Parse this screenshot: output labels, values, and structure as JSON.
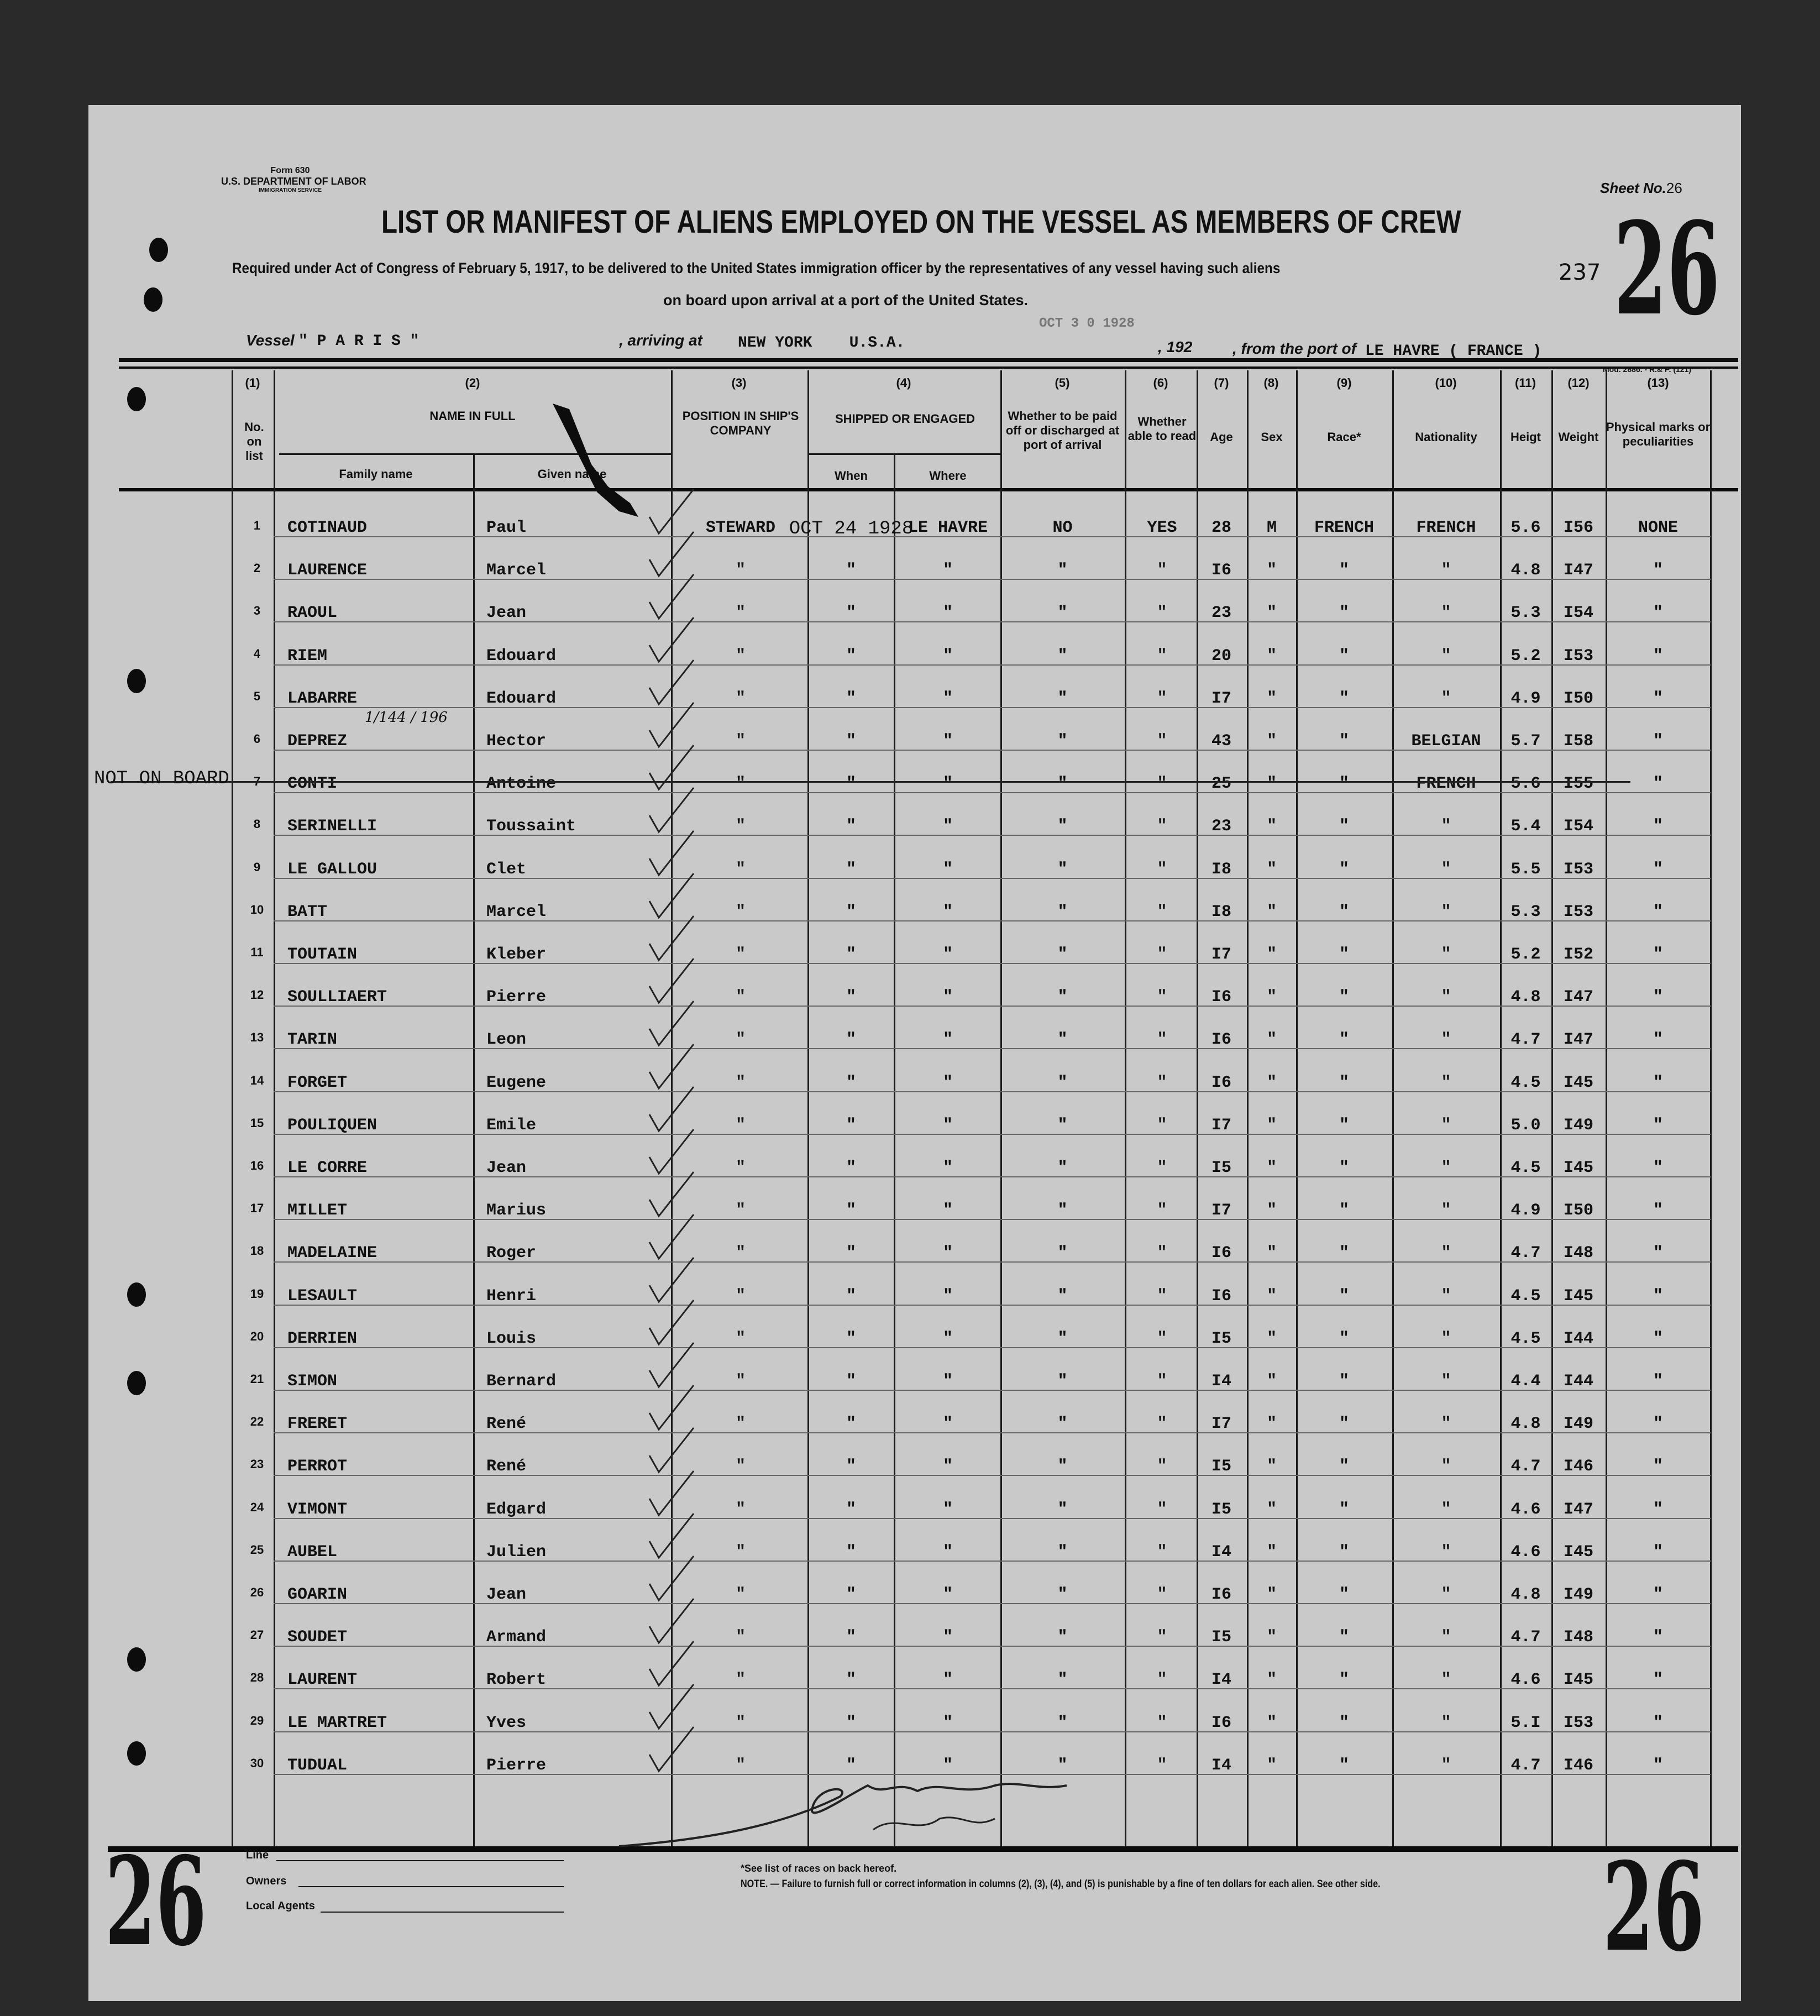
{
  "form": {
    "form_no": "Form 630",
    "department": "U.S. DEPARTMENT OF LABOR",
    "service": "IMMIGRATION SERVICE",
    "mod": "Mod. 2886. - R.& P. (121)"
  },
  "sheet": {
    "label": "Sheet No.",
    "number": "26",
    "stamp_number": "26",
    "handwritten": "237"
  },
  "title": "LIST OR MANIFEST OF ALIENS EMPLOYED ON THE VESSEL AS MEMBERS OF CREW",
  "subtitle_line1": "Required under Act of Congress of February 5, 1917, to be delivered to the United States immigration officer by the representatives of any vessel having such aliens",
  "subtitle_line2": "on board upon arrival at a port of the United States.",
  "voyage": {
    "vessel_label": "Vessel",
    "vessel": "\" P A R I S \"",
    "arriving_label": ", arriving at",
    "arriving": "NEW YORK    U.S.A.",
    "date_stamp": "OCT 3 0 1928",
    "year_label": ", 192",
    "from_label": ", from the port of",
    "from_port": "LE HAVRE ( FRANCE )"
  },
  "columns": {
    "nums": [
      "(1)",
      "(2)",
      "(3)",
      "(4)",
      "(5)",
      "(6)",
      "(7)",
      "(8)",
      "(9)",
      "(10)",
      "(11)",
      "(12)",
      "(13)"
    ],
    "no_on_list": "No. on list",
    "name_in_full": "NAME IN FULL",
    "family_name": "Family name",
    "given_name": "Given name",
    "position": "POSITION IN SHIP'S COMPANY",
    "shipped": "SHIPPED OR ENGAGED",
    "when": "When",
    "where": "Where",
    "paid_off": "Whether to be paid off or discharged at port of arrival",
    "able_to_read": "Whether able to read",
    "age": "Age",
    "sex": "Sex",
    "race": "Race*",
    "nationality": "Nationality",
    "height": "Heigt",
    "weight": "Weight",
    "marks": "Physical marks or peculiarities"
  },
  "annotations": {
    "not_on_board": "NOT ON BOARD",
    "deprez_note": "1/144 / 196"
  },
  "rows": [
    [
      "1",
      "COTINAUD",
      "Paul",
      "STEWARD",
      "OCT 24 1928",
      "LE HAVRE",
      "NO",
      "YES",
      "28",
      "M",
      "FRENCH",
      "FRENCH",
      "5.6",
      "I56",
      "NONE"
    ],
    [
      "2",
      "LAURENCE",
      "Marcel",
      "\"",
      "\"",
      "\"",
      "\"",
      "\"",
      "I6",
      "\"",
      "\"",
      "\"",
      "4.8",
      "I47",
      "\""
    ],
    [
      "3",
      "RAOUL",
      "Jean",
      "\"",
      "\"",
      "\"",
      "\"",
      "\"",
      "23",
      "\"",
      "\"",
      "\"",
      "5.3",
      "I54",
      "\""
    ],
    [
      "4",
      "RIEM",
      "Edouard",
      "\"",
      "\"",
      "\"",
      "\"",
      "\"",
      "20",
      "\"",
      "\"",
      "\"",
      "5.2",
      "I53",
      "\""
    ],
    [
      "5",
      "LABARRE",
      "Edouard",
      "\"",
      "\"",
      "\"",
      "\"",
      "\"",
      "I7",
      "\"",
      "\"",
      "\"",
      "4.9",
      "I50",
      "\""
    ],
    [
      "6",
      "DEPREZ",
      "Hector",
      "\"",
      "\"",
      "\"",
      "\"",
      "\"",
      "43",
      "\"",
      "\"",
      "BELGIAN",
      "5.7",
      "I58",
      "\""
    ],
    [
      "7",
      "CONTI",
      "Antoine",
      "\"",
      "\"",
      "\"",
      "\"",
      "\"",
      "25",
      "\"",
      "\"",
      "FRENCH",
      "5.6",
      "I55",
      "\""
    ],
    [
      "8",
      "SERINELLI",
      "Toussaint",
      "\"",
      "\"",
      "\"",
      "\"",
      "\"",
      "23",
      "\"",
      "\"",
      "\"",
      "5.4",
      "I54",
      "\""
    ],
    [
      "9",
      "LE GALLOU",
      "Clet",
      "\"",
      "\"",
      "\"",
      "\"",
      "\"",
      "I8",
      "\"",
      "\"",
      "\"",
      "5.5",
      "I53",
      "\""
    ],
    [
      "10",
      "BATT",
      "Marcel",
      "\"",
      "\"",
      "\"",
      "\"",
      "\"",
      "I8",
      "\"",
      "\"",
      "\"",
      "5.3",
      "I53",
      "\""
    ],
    [
      "11",
      "TOUTAIN",
      "Kleber",
      "\"",
      "\"",
      "\"",
      "\"",
      "\"",
      "I7",
      "\"",
      "\"",
      "\"",
      "5.2",
      "I52",
      "\""
    ],
    [
      "12",
      "SOULLIAERT",
      "Pierre",
      "\"",
      "\"",
      "\"",
      "\"",
      "\"",
      "I6",
      "\"",
      "\"",
      "\"",
      "4.8",
      "I47",
      "\""
    ],
    [
      "13",
      "TARIN",
      "Leon",
      "\"",
      "\"",
      "\"",
      "\"",
      "\"",
      "I6",
      "\"",
      "\"",
      "\"",
      "4.7",
      "I47",
      "\""
    ],
    [
      "14",
      "FORGET",
      "Eugene",
      "\"",
      "\"",
      "\"",
      "\"",
      "\"",
      "I6",
      "\"",
      "\"",
      "\"",
      "4.5",
      "I45",
      "\""
    ],
    [
      "15",
      "POULIQUEN",
      "Emile",
      "\"",
      "\"",
      "\"",
      "\"",
      "\"",
      "I7",
      "\"",
      "\"",
      "\"",
      "5.0",
      "I49",
      "\""
    ],
    [
      "16",
      "LE CORRE",
      "Jean",
      "\"",
      "\"",
      "\"",
      "\"",
      "\"",
      "I5",
      "\"",
      "\"",
      "\"",
      "4.5",
      "I45",
      "\""
    ],
    [
      "17",
      "MILLET",
      "Marius",
      "\"",
      "\"",
      "\"",
      "\"",
      "\"",
      "I7",
      "\"",
      "\"",
      "\"",
      "4.9",
      "I50",
      "\""
    ],
    [
      "18",
      "MADELAINE",
      "Roger",
      "\"",
      "\"",
      "\"",
      "\"",
      "\"",
      "I6",
      "\"",
      "\"",
      "\"",
      "4.7",
      "I48",
      "\""
    ],
    [
      "19",
      "LESAULT",
      "Henri",
      "\"",
      "\"",
      "\"",
      "\"",
      "\"",
      "I6",
      "\"",
      "\"",
      "\"",
      "4.5",
      "I45",
      "\""
    ],
    [
      "20",
      "DERRIEN",
      "Louis",
      "\"",
      "\"",
      "\"",
      "\"",
      "\"",
      "I5",
      "\"",
      "\"",
      "\"",
      "4.5",
      "I44",
      "\""
    ],
    [
      "21",
      "SIMON",
      "Bernard",
      "\"",
      "\"",
      "\"",
      "\"",
      "\"",
      "I4",
      "\"",
      "\"",
      "\"",
      "4.4",
      "I44",
      "\""
    ],
    [
      "22",
      "FRERET",
      "René",
      "\"",
      "\"",
      "\"",
      "\"",
      "\"",
      "I7",
      "\"",
      "\"",
      "\"",
      "4.8",
      "I49",
      "\""
    ],
    [
      "23",
      "PERROT",
      "René",
      "\"",
      "\"",
      "\"",
      "\"",
      "\"",
      "I5",
      "\"",
      "\"",
      "\"",
      "4.7",
      "I46",
      "\""
    ],
    [
      "24",
      "VIMONT",
      "Edgard",
      "\"",
      "\"",
      "\"",
      "\"",
      "\"",
      "I5",
      "\"",
      "\"",
      "\"",
      "4.6",
      "I47",
      "\""
    ],
    [
      "25",
      "AUBEL",
      "Julien",
      "\"",
      "\"",
      "\"",
      "\"",
      "\"",
      "I4",
      "\"",
      "\"",
      "\"",
      "4.6",
      "I45",
      "\""
    ],
    [
      "26",
      "GOARIN",
      "Jean",
      "\"",
      "\"",
      "\"",
      "\"",
      "\"",
      "I6",
      "\"",
      "\"",
      "\"",
      "4.8",
      "I49",
      "\""
    ],
    [
      "27",
      "SOUDET",
      "Armand",
      "\"",
      "\"",
      "\"",
      "\"",
      "\"",
      "I5",
      "\"",
      "\"",
      "\"",
      "4.7",
      "I48",
      "\""
    ],
    [
      "28",
      "LAURENT",
      "Robert",
      "\"",
      "\"",
      "\"",
      "\"",
      "\"",
      "I4",
      "\"",
      "\"",
      "\"",
      "4.6",
      "I45",
      "\""
    ],
    [
      "29",
      "LE MARTRET",
      "Yves",
      "\"",
      "\"",
      "\"",
      "\"",
      "\"",
      "I6",
      "\"",
      "\"",
      "\"",
      "5.I",
      "I53",
      "\""
    ],
    [
      "30",
      "TUDUAL",
      "Pierre",
      "\"",
      "\"",
      "\"",
      "\"",
      "\"",
      "I4",
      "\"",
      "\"",
      "\"",
      "4.7",
      "I46",
      "\""
    ]
  ],
  "struck_rows": [
    "7"
  ],
  "footer": {
    "line_label": "Line",
    "owners_label": "Owners",
    "agents_label": "Local Agents",
    "races_note": "*See list of races on back hereof.",
    "note": "NOTE. — Failure to furnish full or correct information in columns (2), (3), (4), and (5) is punishable by a fine of ten dollars for each alien. See other side.",
    "stamp_left": "26",
    "stamp_right": "26"
  },
  "colors": {
    "paper": "#c9c9c9",
    "ink": "#111111",
    "border": "#2a2a2a"
  }
}
